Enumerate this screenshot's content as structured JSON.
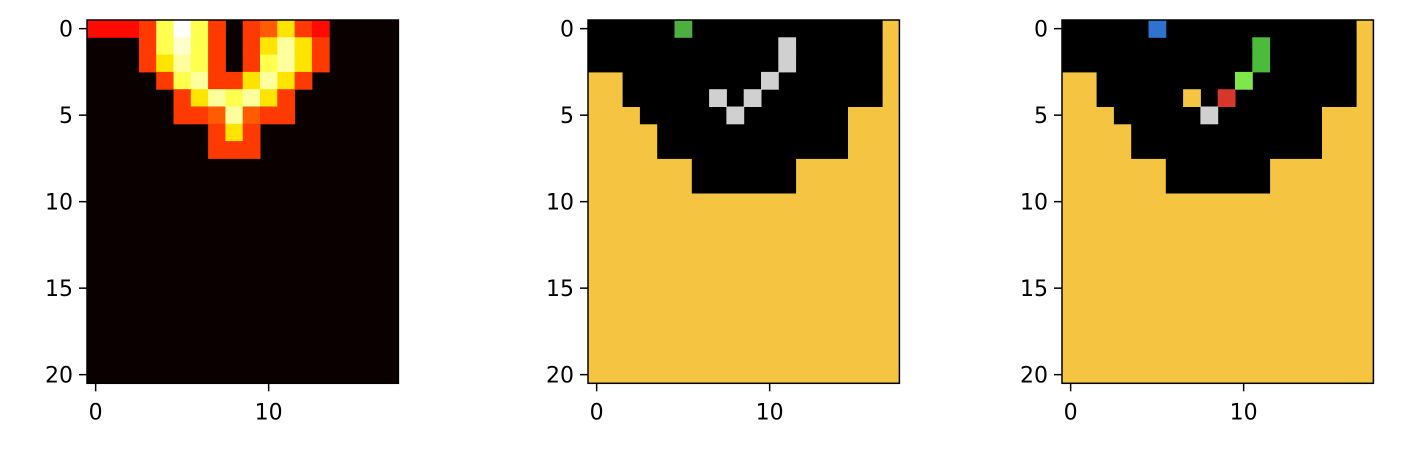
{
  "chart_data": [
    {
      "type": "heatmap",
      "panel": "left",
      "colormap": "hot",
      "rows": 21,
      "cols": 18,
      "xticks": [
        "0",
        "10"
      ],
      "yticks": [
        "0",
        "5",
        "10",
        "15",
        "20"
      ],
      "background_value": 0,
      "cells": [
        {
          "r": 0,
          "c": 0,
          "v": 0.38
        },
        {
          "r": 0,
          "c": 1,
          "v": 0.38
        },
        {
          "r": 0,
          "c": 2,
          "v": 0.38
        },
        {
          "r": 0,
          "c": 3,
          "v": 0.45
        },
        {
          "r": 0,
          "c": 4,
          "v": 0.82
        },
        {
          "r": 0,
          "c": 5,
          "v": 1.0
        },
        {
          "r": 0,
          "c": 6,
          "v": 0.82
        },
        {
          "r": 0,
          "c": 7,
          "v": 0.45
        },
        {
          "r": 0,
          "c": 9,
          "v": 0.45
        },
        {
          "r": 0,
          "c": 10,
          "v": 0.5
        },
        {
          "r": 0,
          "c": 11,
          "v": 0.7
        },
        {
          "r": 0,
          "c": 12,
          "v": 0.45
        },
        {
          "r": 0,
          "c": 13,
          "v": 0.38
        },
        {
          "r": 1,
          "c": 3,
          "v": 0.45
        },
        {
          "r": 1,
          "c": 4,
          "v": 0.82
        },
        {
          "r": 1,
          "c": 5,
          "v": 0.95
        },
        {
          "r": 1,
          "c": 6,
          "v": 0.82
        },
        {
          "r": 1,
          "c": 7,
          "v": 0.45
        },
        {
          "r": 1,
          "c": 9,
          "v": 0.45
        },
        {
          "r": 1,
          "c": 10,
          "v": 0.7
        },
        {
          "r": 1,
          "c": 11,
          "v": 0.9
        },
        {
          "r": 1,
          "c": 12,
          "v": 0.7
        },
        {
          "r": 1,
          "c": 13,
          "v": 0.45
        },
        {
          "r": 2,
          "c": 3,
          "v": 0.45
        },
        {
          "r": 2,
          "c": 4,
          "v": 0.7
        },
        {
          "r": 2,
          "c": 5,
          "v": 0.9
        },
        {
          "r": 2,
          "c": 6,
          "v": 0.82
        },
        {
          "r": 2,
          "c": 7,
          "v": 0.45
        },
        {
          "r": 2,
          "c": 9,
          "v": 0.45
        },
        {
          "r": 2,
          "c": 10,
          "v": 0.82
        },
        {
          "r": 2,
          "c": 11,
          "v": 0.9
        },
        {
          "r": 2,
          "c": 12,
          "v": 0.7
        },
        {
          "r": 2,
          "c": 13,
          "v": 0.45
        },
        {
          "r": 3,
          "c": 4,
          "v": 0.45
        },
        {
          "r": 3,
          "c": 5,
          "v": 0.82
        },
        {
          "r": 3,
          "c": 6,
          "v": 0.9
        },
        {
          "r": 3,
          "c": 7,
          "v": 0.45
        },
        {
          "r": 3,
          "c": 8,
          "v": 0.45
        },
        {
          "r": 3,
          "c": 9,
          "v": 0.7
        },
        {
          "r": 3,
          "c": 10,
          "v": 0.9
        },
        {
          "r": 3,
          "c": 11,
          "v": 0.7
        },
        {
          "r": 3,
          "c": 12,
          "v": 0.45
        },
        {
          "r": 4,
          "c": 5,
          "v": 0.45
        },
        {
          "r": 4,
          "c": 6,
          "v": 0.7
        },
        {
          "r": 4,
          "c": 7,
          "v": 0.9
        },
        {
          "r": 4,
          "c": 8,
          "v": 0.82
        },
        {
          "r": 4,
          "c": 9,
          "v": 0.9
        },
        {
          "r": 4,
          "c": 10,
          "v": 0.7
        },
        {
          "r": 4,
          "c": 11,
          "v": 0.45
        },
        {
          "r": 5,
          "c": 5,
          "v": 0.45
        },
        {
          "r": 5,
          "c": 6,
          "v": 0.45
        },
        {
          "r": 5,
          "c": 7,
          "v": 0.5
        },
        {
          "r": 5,
          "c": 8,
          "v": 0.9
        },
        {
          "r": 5,
          "c": 9,
          "v": 0.5
        },
        {
          "r": 5,
          "c": 10,
          "v": 0.45
        },
        {
          "r": 5,
          "c": 11,
          "v": 0.45
        },
        {
          "r": 6,
          "c": 7,
          "v": 0.45
        },
        {
          "r": 6,
          "c": 8,
          "v": 0.7
        },
        {
          "r": 6,
          "c": 9,
          "v": 0.45
        },
        {
          "r": 7,
          "c": 7,
          "v": 0.45
        },
        {
          "r": 7,
          "c": 8,
          "v": 0.45
        },
        {
          "r": 7,
          "c": 9,
          "v": 0.45
        }
      ]
    },
    {
      "type": "heatmap",
      "panel": "middle",
      "colormap": "categorical",
      "rows": 21,
      "cols": 18,
      "xticks": [
        "0",
        "10"
      ],
      "yticks": [
        "0",
        "5",
        "10",
        "15",
        "20"
      ],
      "background": "yellow",
      "black_region_row_ranges": [
        [
          0,
          16
        ],
        [
          0,
          16
        ],
        [
          0,
          16
        ],
        [
          2,
          16
        ],
        [
          2,
          16
        ],
        [
          3,
          14
        ],
        [
          4,
          14
        ],
        [
          4,
          14
        ],
        [
          6,
          11
        ],
        [
          6,
          11
        ]
      ],
      "colors": {
        "yellow": "#f5c542",
        "black": "#000000",
        "green": "#4caf3f",
        "gray": "#d0d0d0"
      },
      "cells": [
        {
          "r": 0,
          "c": 5,
          "color": "green"
        },
        {
          "r": 1,
          "c": 11,
          "color": "gray"
        },
        {
          "r": 2,
          "c": 11,
          "color": "gray"
        },
        {
          "r": 3,
          "c": 10,
          "color": "gray"
        },
        {
          "r": 4,
          "c": 7,
          "color": "gray"
        },
        {
          "r": 4,
          "c": 9,
          "color": "gray"
        },
        {
          "r": 5,
          "c": 8,
          "color": "gray"
        }
      ]
    },
    {
      "type": "heatmap",
      "panel": "right",
      "colormap": "categorical",
      "rows": 21,
      "cols": 18,
      "xticks": [
        "0",
        "10"
      ],
      "yticks": [
        "0",
        "5",
        "10",
        "15",
        "20"
      ],
      "background": "yellow",
      "black_region_row_ranges": [
        [
          0,
          16
        ],
        [
          0,
          16
        ],
        [
          0,
          16
        ],
        [
          2,
          16
        ],
        [
          2,
          16
        ],
        [
          3,
          14
        ],
        [
          4,
          14
        ],
        [
          4,
          14
        ],
        [
          6,
          11
        ],
        [
          6,
          11
        ]
      ],
      "colors": {
        "yellow": "#f5c542",
        "black": "#000000",
        "blue": "#2f73d1",
        "green": "#4cba3a",
        "lime": "#7ee84a",
        "red": "#d9362b",
        "gray": "#d0d0d0"
      },
      "cells": [
        {
          "r": 0,
          "c": 5,
          "color": "blue"
        },
        {
          "r": 1,
          "c": 11,
          "color": "green"
        },
        {
          "r": 2,
          "c": 11,
          "color": "green"
        },
        {
          "r": 3,
          "c": 10,
          "color": "lime"
        },
        {
          "r": 4,
          "c": 7,
          "color": "yellow"
        },
        {
          "r": 4,
          "c": 9,
          "color": "red"
        },
        {
          "r": 5,
          "c": 8,
          "color": "gray"
        }
      ]
    }
  ]
}
